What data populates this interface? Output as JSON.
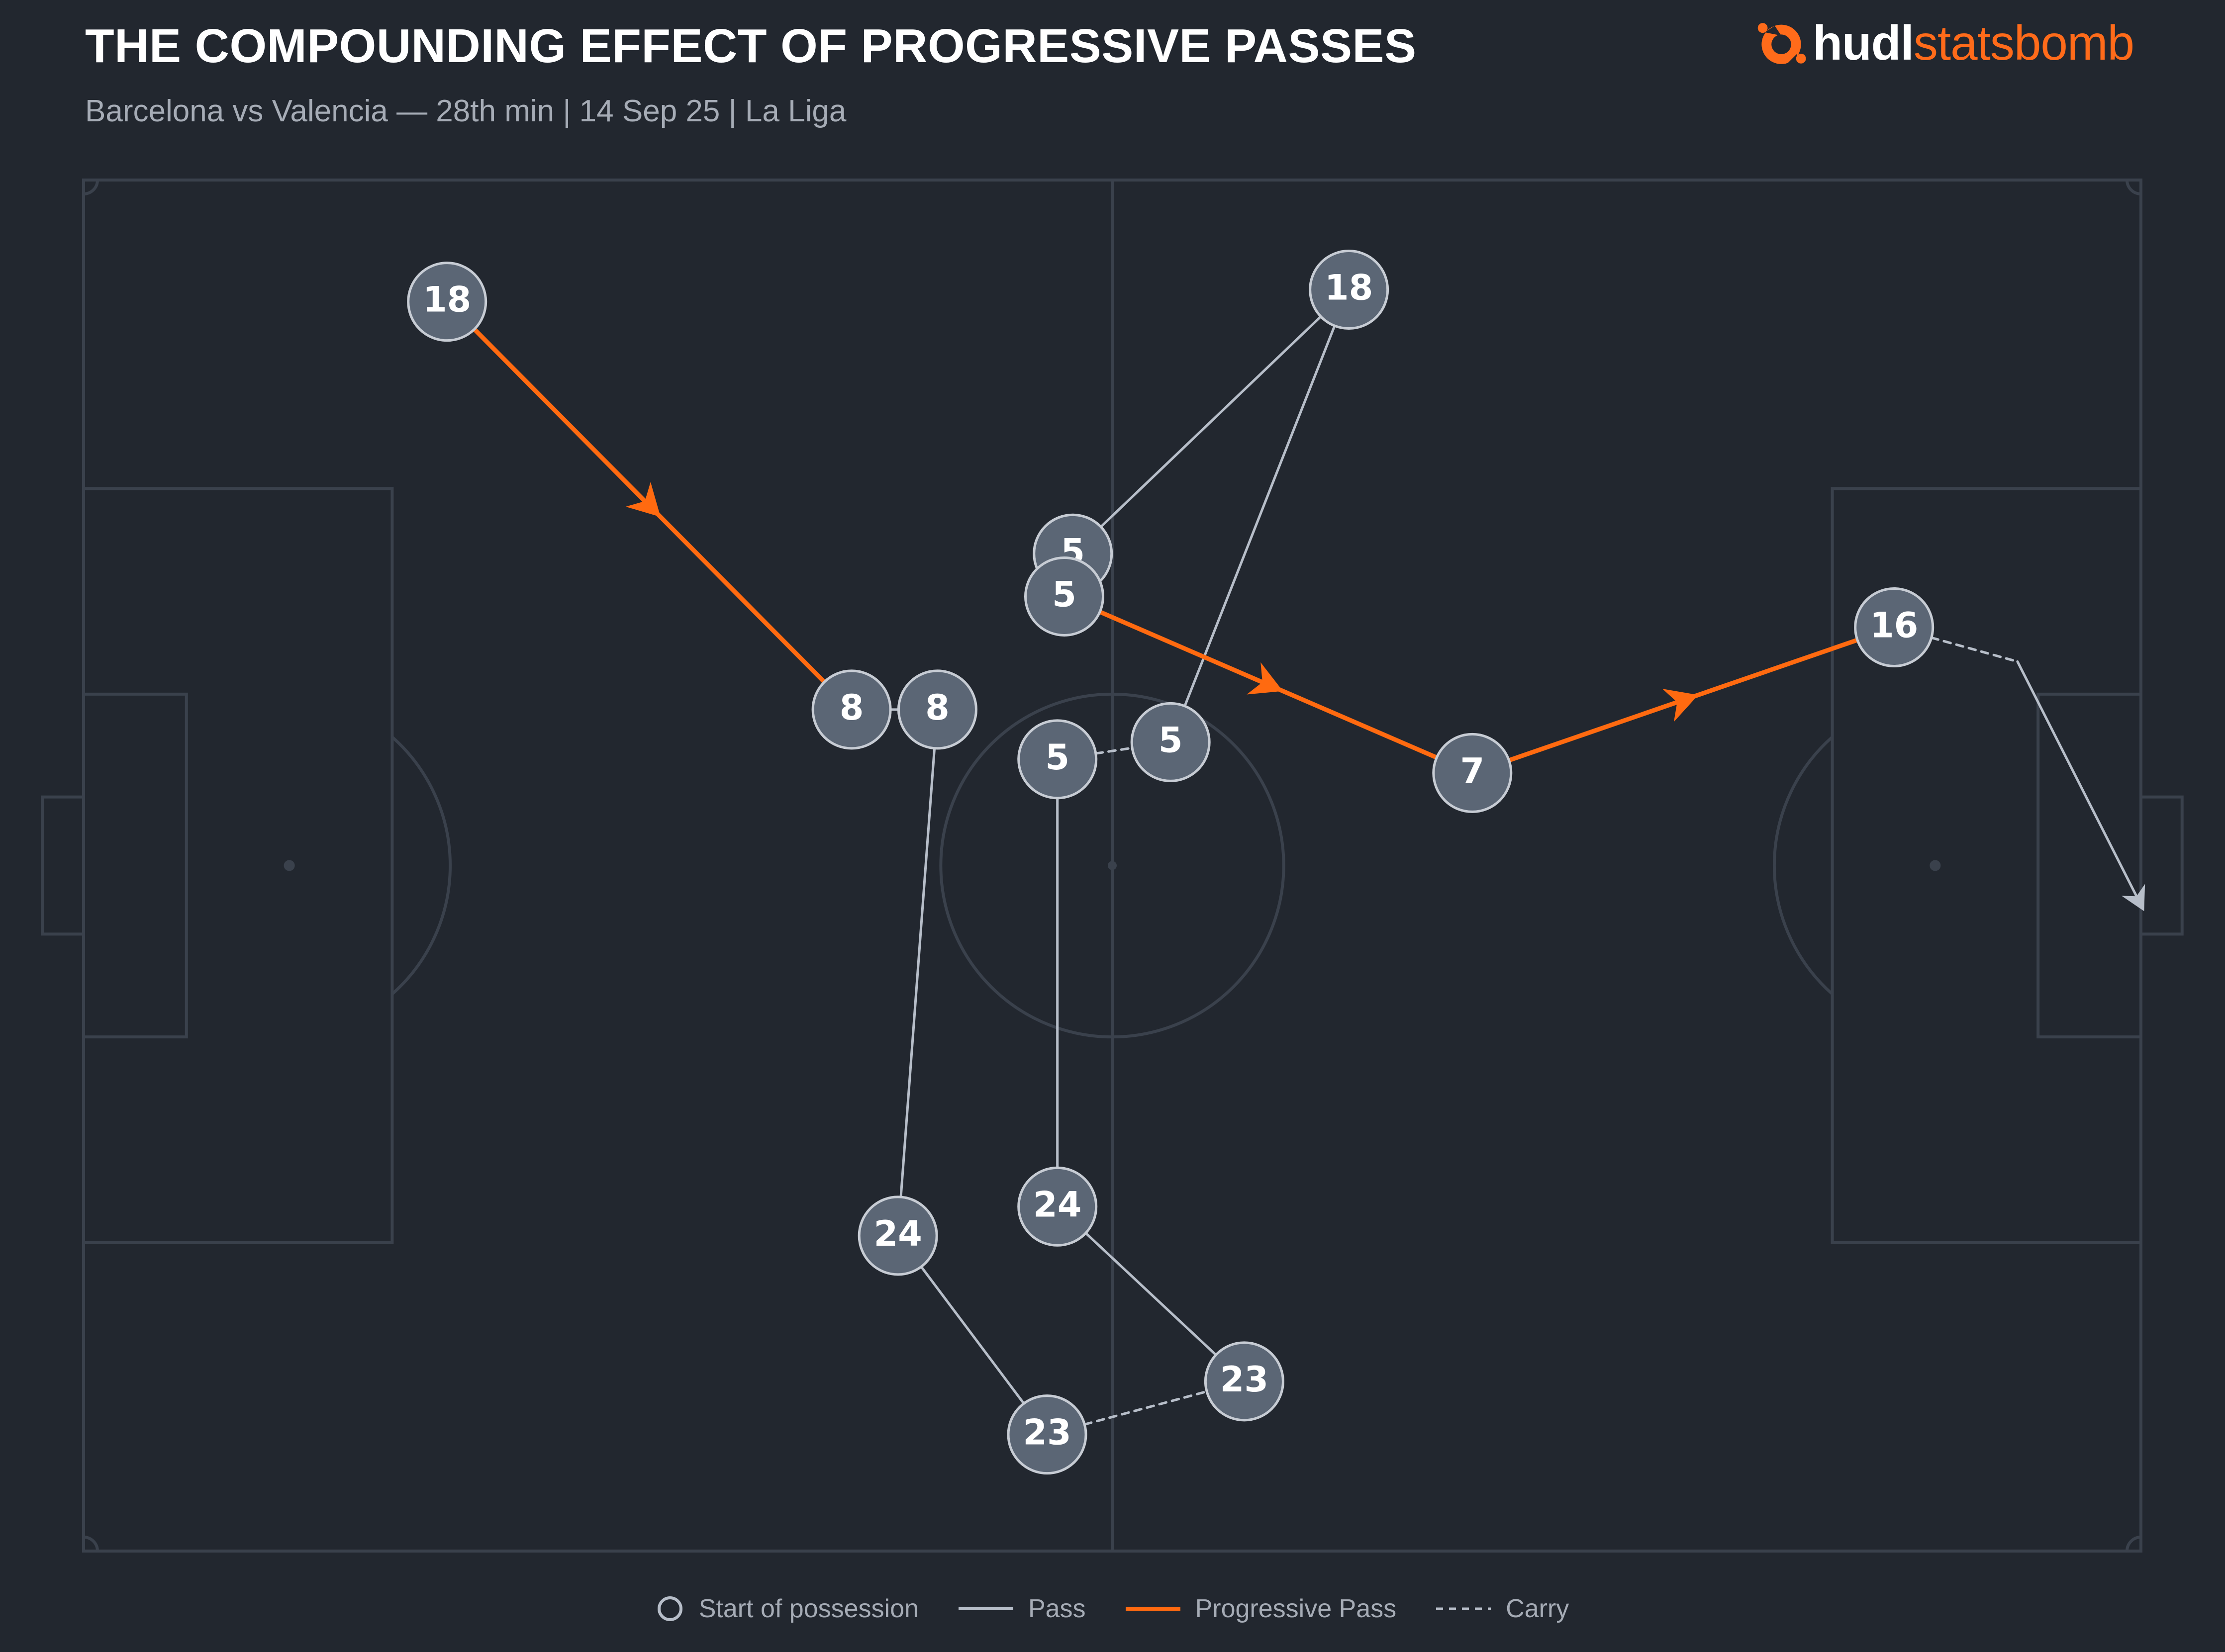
{
  "header": {
    "title": "THE COMPOUNDING EFFECT OF PROGRESSIVE PASSES",
    "subtitle": "Barcelona vs Valencia — 28th min | 14 Sep 25 | La Liga"
  },
  "brand": {
    "name_bold": "hudl",
    "name_light": "statsbomb",
    "accent_color": "#ff6b1a",
    "icon": "hudl-statsbomb-logo-icon"
  },
  "colors": {
    "background": "#22272f",
    "pitch_lines": "#3a414c",
    "pass": "#b7bec9",
    "progressive_pass": "#ff6a10",
    "carry": "#b7bec9",
    "node_fill": "#5b6675",
    "node_stroke": "#c7ccd4"
  },
  "pitch": {
    "length": 120,
    "width": 80,
    "attacking_direction": "left-to-right"
  },
  "nodes": [
    {
      "id": "n1",
      "number": "18",
      "x": 21.2,
      "y": 7.1
    },
    {
      "id": "n2",
      "number": "8",
      "x": 44.8,
      "y": 30.9
    },
    {
      "id": "n3",
      "number": "8",
      "x": 49.8,
      "y": 30.9
    },
    {
      "id": "n4",
      "number": "24",
      "x": 47.5,
      "y": 61.6
    },
    {
      "id": "n5",
      "number": "23",
      "x": 56.2,
      "y": 73.2
    },
    {
      "id": "n6",
      "number": "23",
      "x": 67.7,
      "y": 70.1
    },
    {
      "id": "n7",
      "number": "24",
      "x": 56.8,
      "y": 59.9
    },
    {
      "id": "n8",
      "number": "5",
      "x": 56.8,
      "y": 33.8
    },
    {
      "id": "n9",
      "number": "5",
      "x": 63.4,
      "y": 32.8
    },
    {
      "id": "n10",
      "number": "18",
      "x": 73.8,
      "y": 6.4
    },
    {
      "id": "n11",
      "number": "5",
      "x": 57.7,
      "y": 21.8
    },
    {
      "id": "n12",
      "number": "5",
      "x": 57.2,
      "y": 24.3
    },
    {
      "id": "n13",
      "number": "7",
      "x": 81.0,
      "y": 34.6
    },
    {
      "id": "n14",
      "number": "16",
      "x": 105.6,
      "y": 26.1
    }
  ],
  "actions": [
    {
      "type": "progressive_pass",
      "from": "n1",
      "to": "n2"
    },
    {
      "type": "pass",
      "from": "n2",
      "to": "n3"
    },
    {
      "type": "pass",
      "from": "n3",
      "to": "n4"
    },
    {
      "type": "pass",
      "from": "n4",
      "to": "n5"
    },
    {
      "type": "carry",
      "from": "n5",
      "to": "n6"
    },
    {
      "type": "pass",
      "from": "n6",
      "to": "n7"
    },
    {
      "type": "pass",
      "from": "n7",
      "to": "n8"
    },
    {
      "type": "carry",
      "from": "n8",
      "to": "n9"
    },
    {
      "type": "pass",
      "from": "n9",
      "to": "n10"
    },
    {
      "type": "pass",
      "from": "n10",
      "to": "n11"
    },
    {
      "type": "progressive_pass",
      "from": "n12",
      "to": "n13"
    },
    {
      "type": "progressive_pass",
      "from": "n13",
      "to": "n14"
    },
    {
      "type": "carry",
      "from": "n14",
      "to_point": {
        "x": 112.8,
        "y": 28.1
      }
    },
    {
      "type": "pass",
      "from_point": {
        "x": 112.8,
        "y": 28.1
      },
      "to_point": {
        "x": 120.0,
        "y": 42.3
      },
      "arrow": true
    }
  ],
  "legend": {
    "start": "Start of possession",
    "pass": "Pass",
    "progressive": "Progressive Pass",
    "carry": "Carry"
  }
}
